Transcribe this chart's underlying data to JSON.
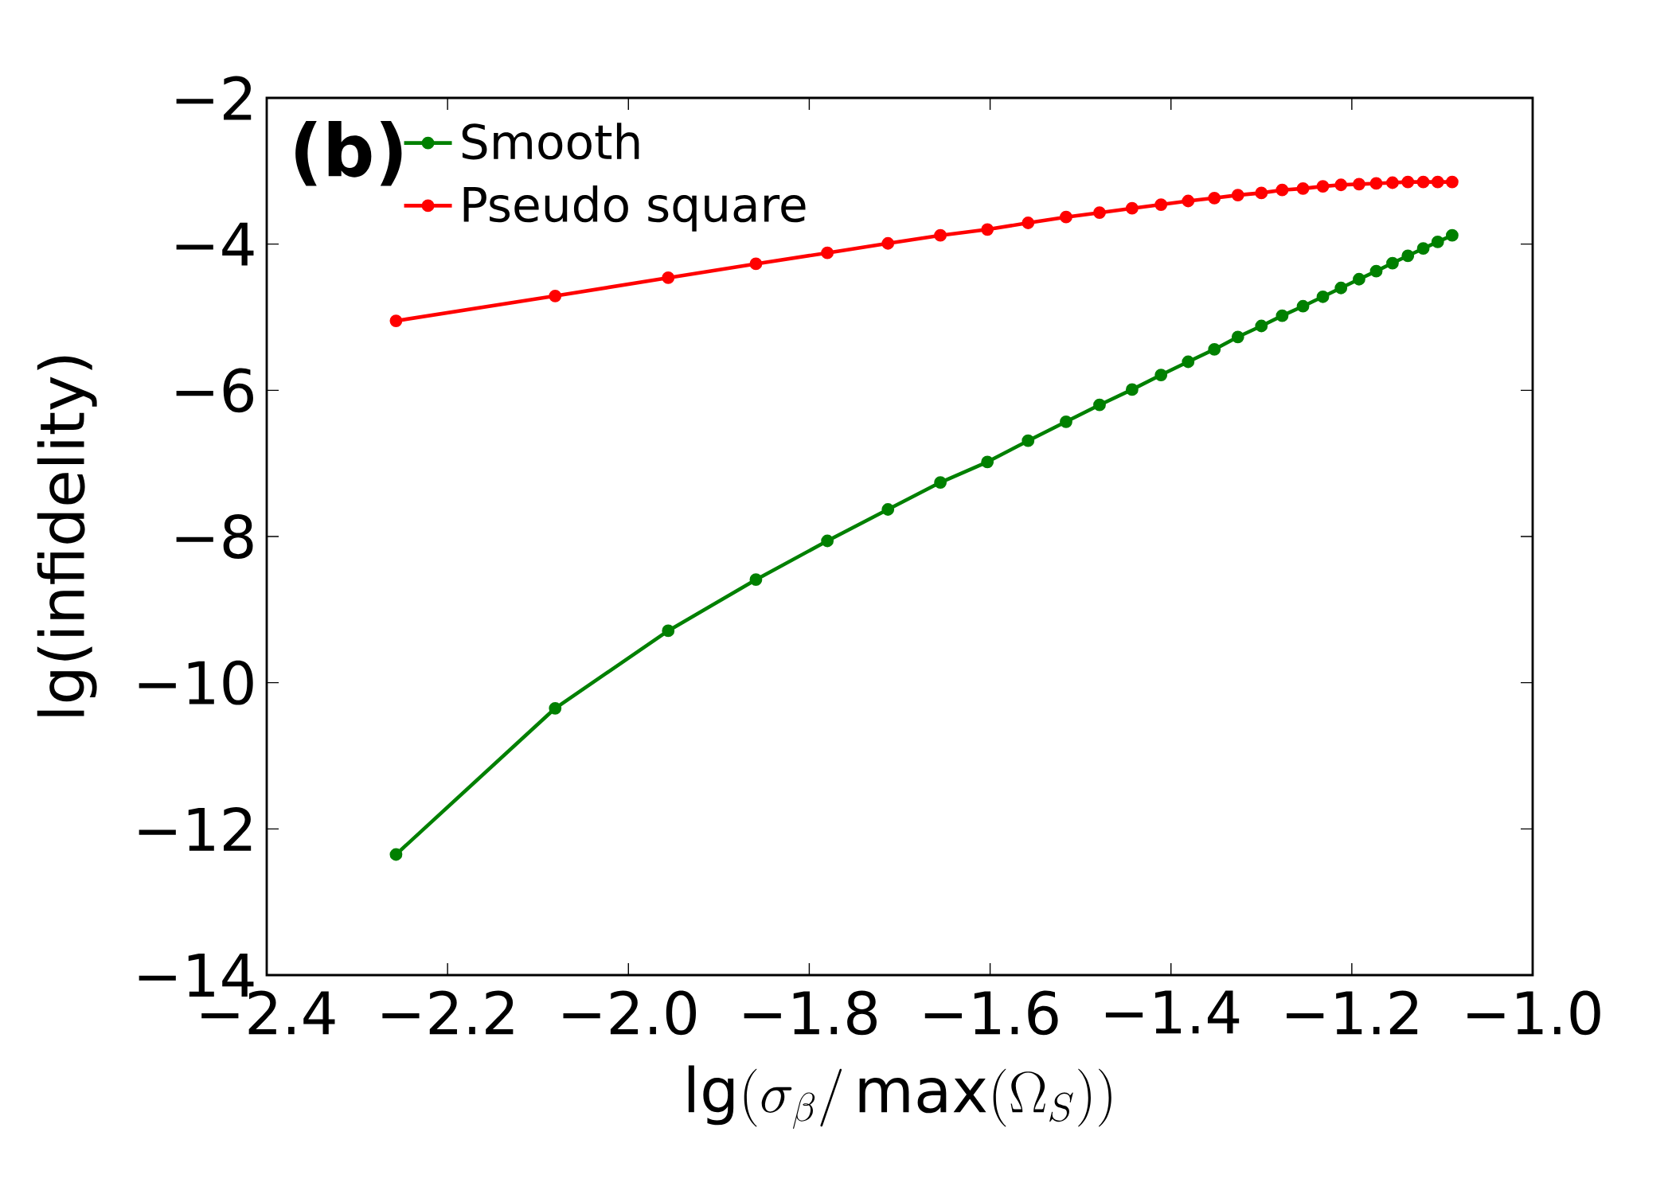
{
  "chart_data": {
    "type": "line",
    "xlabel": "\\lg(\\sigma_\\beta/\\max(\\Omega_S))",
    "ylabel": "lg(infidelity)",
    "annotations": [
      "**(b)**"
    ],
    "xlim": [
      -2.4,
      -1.0
    ],
    "ylim": [
      -14,
      -2
    ],
    "xticks": [
      {
        "value": -2.4,
        "label": "−2.4"
      },
      {
        "value": -2.2,
        "label": "−2.2"
      },
      {
        "value": -2.0,
        "label": "−2.0"
      },
      {
        "value": -1.8,
        "label": "−1.8"
      },
      {
        "value": -1.6,
        "label": "−1.6"
      },
      {
        "value": -1.4,
        "label": "−1.4"
      },
      {
        "value": -1.2,
        "label": "−1.2"
      },
      {
        "value": -1.0,
        "label": "−1.0"
      }
    ],
    "yticks": [
      {
        "value": -14,
        "label": "−14"
      },
      {
        "value": -12,
        "label": "−12"
      },
      {
        "value": -10,
        "label": "−10"
      },
      {
        "value": -8,
        "label": "−8"
      },
      {
        "value": -6,
        "label": "−6"
      },
      {
        "value": -4,
        "label": "−4"
      },
      {
        "value": -2,
        "label": "−2"
      }
    ],
    "x": [
      -2.257,
      -2.081,
      -1.956,
      -1.859,
      -1.78,
      -1.713,
      -1.655,
      -1.603,
      -1.558,
      -1.516,
      -1.479,
      -1.443,
      -1.411,
      -1.381,
      -1.352,
      -1.326,
      -1.3,
      -1.277,
      -1.254,
      -1.232,
      -1.212,
      -1.192,
      -1.173,
      -1.155,
      -1.138,
      -1.121,
      -1.105,
      -1.089
    ],
    "series": [
      {
        "name": "Smooth",
        "color": "#008000",
        "values": [
          -12.35,
          -10.35,
          -9.29,
          -8.59,
          -8.06,
          -7.63,
          -7.26,
          -6.98,
          -6.69,
          -6.43,
          -6.2,
          -5.99,
          -5.79,
          -5.61,
          -5.44,
          -5.27,
          -5.12,
          -4.98,
          -4.85,
          -4.72,
          -4.6,
          -4.48,
          -4.37,
          -4.26,
          -4.16,
          -4.06,
          -3.97,
          -3.88
        ]
      },
      {
        "name": "Pseudo square",
        "color": "#ff0000",
        "values": [
          -5.05,
          -4.71,
          -4.46,
          -4.27,
          -4.12,
          -3.99,
          -3.88,
          -3.8,
          -3.71,
          -3.63,
          -3.57,
          -3.51,
          -3.46,
          -3.41,
          -3.37,
          -3.33,
          -3.3,
          -3.26,
          -3.24,
          -3.21,
          -3.19,
          -3.18,
          -3.17,
          -3.16,
          -3.15,
          -3.15,
          -3.15,
          -3.15
        ]
      }
    ],
    "legend": "top left",
    "marker": "circle",
    "line_style": "solid",
    "grid": false
  }
}
